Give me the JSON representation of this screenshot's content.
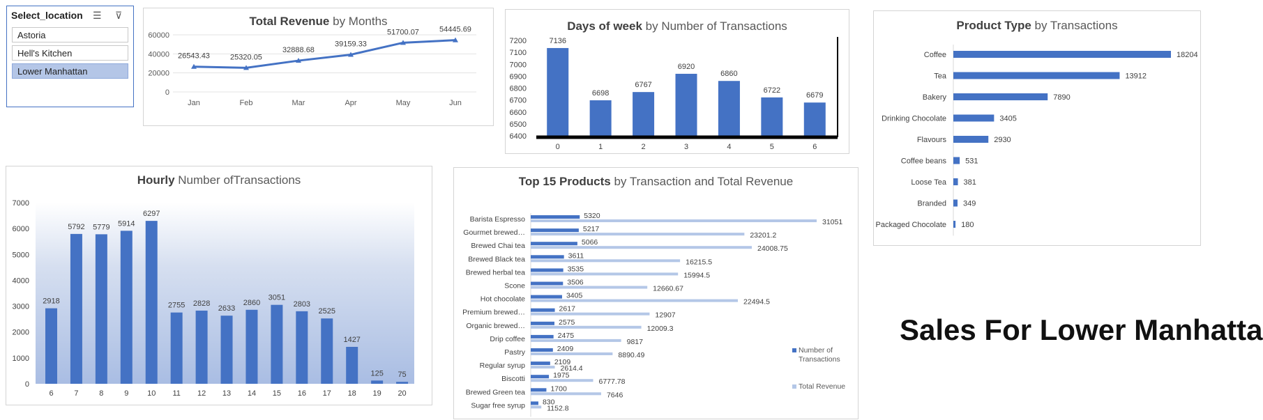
{
  "slicer": {
    "title": "Select_location",
    "items": [
      {
        "label": "Astoria",
        "selected": false
      },
      {
        "label": "Hell's Kitchen",
        "selected": false
      },
      {
        "label": "Lower Manhattan",
        "selected": true
      }
    ]
  },
  "page_title": "Sales For Lower Manhattan",
  "colors": {
    "bar": "#4472c4",
    "revenue_bar": "#b4c7e7"
  },
  "chart_data": [
    {
      "id": "revenue",
      "type": "line",
      "title_bold": "Total Revenue",
      "title_rest": " by Months",
      "categories": [
        "Jan",
        "Feb",
        "Mar",
        "Apr",
        "May",
        "Jun"
      ],
      "values": [
        26543.43,
        25320.05,
        32888.68,
        39159.33,
        51700.07,
        54445.69
      ],
      "labels": [
        "26543.43",
        "25320.05",
        "32888.68",
        "39159.33",
        "51700.07",
        "54445.69"
      ],
      "yticks": [
        "0",
        "20000",
        "40000",
        "60000"
      ],
      "ylim": [
        0,
        60000
      ]
    },
    {
      "id": "dow",
      "type": "bar",
      "title_bold": "Days of week",
      "title_rest": " by Number of Transactions",
      "categories": [
        "0",
        "1",
        "2",
        "3",
        "4",
        "5",
        "6"
      ],
      "values": [
        7136,
        6698,
        6767,
        6920,
        6860,
        6722,
        6679
      ],
      "yticks": [
        "6400",
        "6500",
        "6600",
        "6700",
        "6800",
        "6900",
        "7000",
        "7100",
        "7200"
      ],
      "ylim": [
        6400,
        7200
      ]
    },
    {
      "id": "ptype",
      "type": "bar",
      "orientation": "horizontal",
      "title_bold": "Product Type",
      "title_rest": " by Transactions",
      "categories": [
        "Coffee",
        "Tea",
        "Bakery",
        "Drinking Chocolate",
        "Flavours",
        "Coffee beans",
        "Loose Tea",
        "Branded",
        "Packaged Chocolate"
      ],
      "values": [
        18204,
        13912,
        7890,
        3405,
        2930,
        531,
        381,
        349,
        180
      ]
    },
    {
      "id": "hourly",
      "type": "bar",
      "title_bold": "Hourly",
      "title_rest": " Number ofTransactions",
      "categories": [
        "6",
        "7",
        "8",
        "9",
        "10",
        "11",
        "12",
        "13",
        "14",
        "15",
        "16",
        "17",
        "18",
        "19",
        "20"
      ],
      "values": [
        2918,
        5792,
        5779,
        5914,
        6297,
        2755,
        2828,
        2633,
        2860,
        3051,
        2803,
        2525,
        1427,
        125,
        75
      ],
      "yticks": [
        "0",
        "1000",
        "2000",
        "3000",
        "4000",
        "5000",
        "6000",
        "7000"
      ],
      "ylim": [
        0,
        7000
      ]
    },
    {
      "id": "top15",
      "type": "bar",
      "orientation": "horizontal",
      "title_bold": "Top 15 Products",
      "title_rest": " by Transaction and Total Revenue",
      "categories": [
        "Barista Espresso",
        "Gourmet brewed…",
        "Brewed Chai tea",
        "Brewed Black tea",
        "Brewed herbal tea",
        "Scone",
        "Hot chocolate",
        "Premium brewed…",
        "Organic brewed…",
        "Drip coffee",
        "Pastry",
        "Regular syrup",
        "Biscotti",
        "Brewed Green tea",
        "Sugar free syrup"
      ],
      "series": [
        {
          "name": "Number of Transactions",
          "values": [
            5320,
            5217,
            5066,
            3611,
            3535,
            3506,
            3405,
            2617,
            2575,
            2475,
            2409,
            2109,
            1975,
            1700,
            830
          ],
          "labels": [
            "5320",
            "5217",
            "5066",
            "3611",
            "3535",
            "3506",
            "3405",
            "2617",
            "2575",
            "2475",
            "2409",
            "2109",
            "1975",
            "1700",
            "830"
          ]
        },
        {
          "name": "Total Revenue",
          "values": [
            31051,
            23201.2,
            24008.75,
            16215.5,
            15994.5,
            12660.67,
            22494.5,
            12907,
            12009.3,
            9817,
            8890.49,
            2614.4,
            6777.78,
            7646,
            1152.8
          ],
          "labels": [
            "31051",
            "23201.2",
            "24008.75",
            "16215.5",
            "15994.5",
            "12660.67",
            "22494.5",
            "12907",
            "12009.3",
            "9817",
            "8890.49",
            "2614.4",
            "6777.78",
            "7646",
            "1152.8"
          ]
        }
      ],
      "legend": "right"
    }
  ]
}
